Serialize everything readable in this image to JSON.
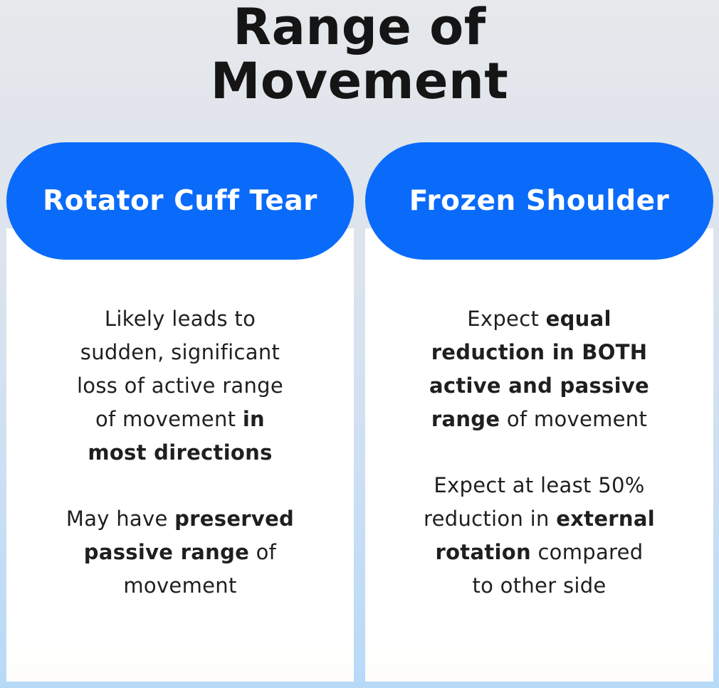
{
  "title": {
    "lines": [
      "Range of",
      "Movement"
    ]
  },
  "colors": {
    "pill_blue": "#0a6bfa",
    "background_top": "#e6e8eb",
    "background_bottom": "#b7d9f8",
    "card_background": "#ffffff",
    "title_text": "#151515",
    "body_text": "#1f1f1f",
    "pill_text": "#ffffff"
  },
  "cards": [
    {
      "header": "Rotator Cuff Tear",
      "paragraphs": [
        {
          "lines": [
            [
              {
                "t": "Likely leads to"
              }
            ],
            [
              {
                "t": "sudden, significant"
              }
            ],
            [
              {
                "t": "loss of active range"
              }
            ],
            [
              {
                "t": "of movement "
              },
              {
                "t": "in",
                "b": true
              }
            ],
            [
              {
                "t": "most directions",
                "b": true
              }
            ]
          ]
        },
        {
          "lines": [
            [
              {
                "t": "May have "
              },
              {
                "t": "preserved",
                "b": true
              }
            ],
            [
              {
                "t": "passive range",
                "b": true
              },
              {
                "t": " of"
              }
            ],
            [
              {
                "t": "movement"
              }
            ]
          ]
        }
      ]
    },
    {
      "header": "Frozen Shoulder",
      "paragraphs": [
        {
          "lines": [
            [
              {
                "t": "Expect "
              },
              {
                "t": "equal",
                "b": true
              }
            ],
            [
              {
                "t": "reduction in BOTH",
                "b": true
              }
            ],
            [
              {
                "t": "active and passive",
                "b": true
              }
            ],
            [
              {
                "t": "range",
                "b": true
              },
              {
                "t": " of movement"
              }
            ]
          ]
        },
        {
          "lines": [
            [
              {
                "t": "Expect at least 50%"
              }
            ],
            [
              {
                "t": "reduction in "
              },
              {
                "t": "external",
                "b": true
              }
            ],
            [
              {
                "t": "rotation",
                "b": true
              },
              {
                "t": " compared"
              }
            ],
            [
              {
                "t": "to other side"
              }
            ]
          ]
        }
      ]
    }
  ]
}
